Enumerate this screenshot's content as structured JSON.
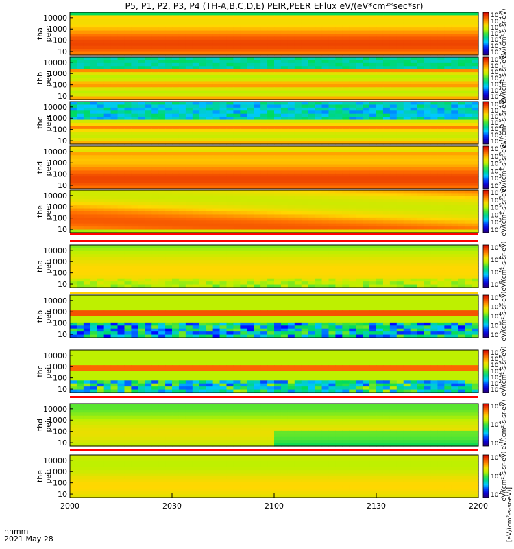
{
  "title": "P5, P1, P2, P3, P4 (TH-A,B,C,D,E) PEIR,PEER EFlux eV/(eV*cm²*sec*sr)",
  "footer": {
    "line1": "hhmm",
    "line2": "2021 May 28"
  },
  "colorbar_unit_label": "[eV/(cm²-s-sr-eV)]",
  "chart_data": {
    "type": "heatmap",
    "x_tick_labels": [
      "2000",
      "2030",
      "2100",
      "2130",
      "2200"
    ],
    "x_range": [
      "2000",
      "2200"
    ],
    "y_scale": "log",
    "y_range": [
      5,
      30000
    ],
    "y_tick_values": [
      10,
      100,
      1000,
      10000
    ],
    "y_tick_labels": [
      "10",
      "100",
      "1000",
      "10000"
    ],
    "colormap": "rainbow",
    "panels": [
      {
        "probe": "tha",
        "species": "peer",
        "cbar_ticks": [
          2,
          3,
          4,
          5,
          6,
          7,
          8
        ],
        "cbar_label": "eV/(cm²-s-sr-eV)"
      },
      {
        "probe": "thb",
        "species": "peer",
        "cbar_ticks": [
          2,
          3,
          4,
          5,
          6,
          7,
          8
        ],
        "cbar_label": "eV/(cm²-s-sr-eV)"
      },
      {
        "probe": "thc",
        "species": "peer",
        "cbar_ticks": [
          2,
          3,
          4,
          5,
          6,
          7,
          8
        ],
        "cbar_label": "eV/(cm²-s-sr-eV)"
      },
      {
        "probe": "thd",
        "species": "peer",
        "cbar_ticks": [
          2,
          3,
          4,
          5,
          6,
          7
        ],
        "cbar_label": "eV/(cm²-s-sr-eV)"
      },
      {
        "probe": "the",
        "species": "peer",
        "cbar_ticks": [
          2,
          3,
          4,
          5,
          6,
          7
        ],
        "cbar_label": "eV/(cm²-s-sr-eV)"
      },
      {
        "probe": "tha",
        "species": "peir",
        "cbar_ticks": [
          0,
          2,
          4,
          6
        ],
        "cbar_label": "eV/(cm²-s-sr-eV)"
      },
      {
        "probe": "thb",
        "species": "peir",
        "cbar_ticks": [
          2,
          3,
          4,
          5,
          6
        ],
        "cbar_label": "eV/(cm²-s-sr-eV)"
      },
      {
        "probe": "thc",
        "species": "peir",
        "cbar_ticks": [
          1,
          2,
          3,
          4,
          5,
          6,
          7
        ],
        "cbar_label": "eV/(cm²-s-sr-eV)"
      },
      {
        "probe": "thd",
        "species": "peir",
        "cbar_ticks": [
          2,
          4,
          6
        ],
        "cbar_label": "eV/(cm²-s-sr-eV)"
      },
      {
        "probe": "the",
        "species": "peir",
        "cbar_ticks": [
          2,
          4,
          6
        ],
        "cbar_label": "eV/(cm²-s-sr-eV)"
      }
    ]
  }
}
